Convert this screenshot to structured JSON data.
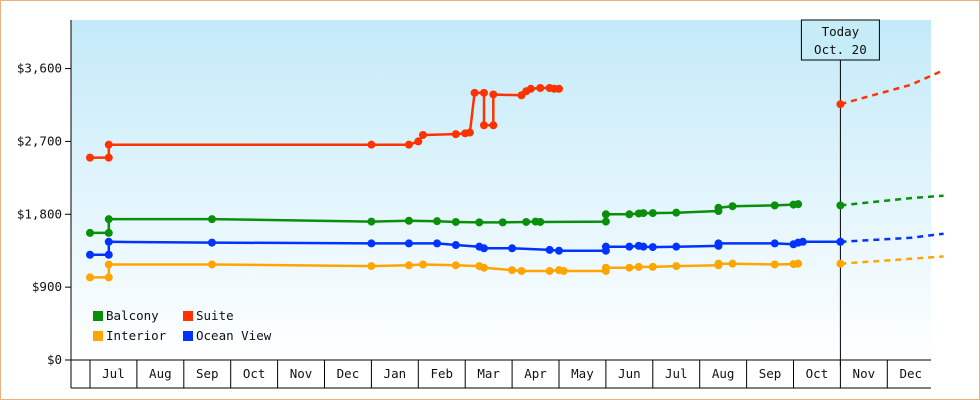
{
  "chart_data": {
    "type": "line",
    "y_ticks": [
      "$0",
      "$900",
      "$1,800",
      "$2,700",
      "$3,600"
    ],
    "y_tick_values": [
      0,
      900,
      1800,
      2700,
      3600
    ],
    "ylim": [
      0,
      4200
    ],
    "months": [
      "Jul",
      "Aug",
      "Sep",
      "Oct",
      "Nov",
      "Dec",
      "Jan",
      "Feb",
      "Mar",
      "Apr",
      "May",
      "Jun",
      "Jul",
      "Aug",
      "Sep",
      "Oct",
      "Nov",
      "Dec"
    ],
    "today": {
      "line1": "Today",
      "line2": "Oct. 20"
    },
    "legend_position": "bottom-left",
    "series": [
      {
        "name": "Balcony",
        "color": "#0a8f0a",
        "points": [
          [
            0.0,
            1570
          ],
          [
            0.4,
            1570
          ],
          [
            0.4,
            1740
          ],
          [
            2.6,
            1740
          ],
          [
            6.0,
            1710
          ],
          [
            6.8,
            1720
          ],
          [
            7.4,
            1715
          ],
          [
            7.8,
            1705
          ],
          [
            8.3,
            1700
          ],
          [
            8.8,
            1700
          ],
          [
            9.3,
            1705
          ],
          [
            9.5,
            1710
          ],
          [
            9.6,
            1705
          ],
          [
            11.0,
            1710
          ],
          [
            11.0,
            1800
          ],
          [
            11.5,
            1800
          ],
          [
            11.7,
            1810
          ],
          [
            11.8,
            1815
          ],
          [
            12.0,
            1815
          ],
          [
            12.5,
            1820
          ],
          [
            13.4,
            1840
          ],
          [
            13.4,
            1880
          ],
          [
            13.7,
            1900
          ],
          [
            14.6,
            1910
          ],
          [
            15.0,
            1920
          ],
          [
            15.1,
            1925
          ]
        ],
        "forecast": [
          [
            16.0,
            1910
          ],
          [
            17.5,
            2000
          ],
          [
            18.2,
            2030
          ]
        ]
      },
      {
        "name": "Suite",
        "color": "#ff3300",
        "points": [
          [
            0.0,
            2500
          ],
          [
            0.4,
            2500
          ],
          [
            0.4,
            2660
          ],
          [
            6.0,
            2660
          ],
          [
            6.8,
            2660
          ],
          [
            7.0,
            2700
          ],
          [
            7.1,
            2780
          ],
          [
            7.8,
            2790
          ],
          [
            8.0,
            2800
          ],
          [
            8.1,
            2810
          ],
          [
            8.2,
            3300
          ],
          [
            8.4,
            3300
          ],
          [
            8.4,
            2900
          ],
          [
            8.6,
            2900
          ],
          [
            8.6,
            3280
          ],
          [
            9.2,
            3270
          ],
          [
            9.3,
            3320
          ],
          [
            9.4,
            3350
          ],
          [
            9.6,
            3360
          ],
          [
            9.8,
            3360
          ],
          [
            9.9,
            3350
          ],
          [
            10.0,
            3350
          ]
        ],
        "forecast": [
          [
            16.0,
            3160
          ],
          [
            17.5,
            3400
          ],
          [
            18.2,
            3580
          ]
        ]
      },
      {
        "name": "Interior",
        "color": "#ffa500",
        "points": [
          [
            0.0,
            1020
          ],
          [
            0.4,
            1020
          ],
          [
            0.4,
            1180
          ],
          [
            2.6,
            1180
          ],
          [
            6.0,
            1160
          ],
          [
            6.8,
            1170
          ],
          [
            7.1,
            1180
          ],
          [
            7.8,
            1170
          ],
          [
            8.3,
            1160
          ],
          [
            8.4,
            1140
          ],
          [
            9.0,
            1110
          ],
          [
            9.2,
            1100
          ],
          [
            9.8,
            1100
          ],
          [
            10.0,
            1110
          ],
          [
            10.1,
            1100
          ],
          [
            11.0,
            1100
          ],
          [
            11.0,
            1140
          ],
          [
            11.5,
            1140
          ],
          [
            11.7,
            1150
          ],
          [
            12.0,
            1150
          ],
          [
            12.5,
            1160
          ],
          [
            13.4,
            1170
          ],
          [
            13.4,
            1190
          ],
          [
            13.7,
            1190
          ],
          [
            14.6,
            1180
          ],
          [
            15.0,
            1185
          ],
          [
            15.1,
            1190
          ]
        ],
        "forecast": [
          [
            16.0,
            1190
          ],
          [
            17.5,
            1250
          ],
          [
            18.2,
            1280
          ]
        ]
      },
      {
        "name": "Ocean View",
        "color": "#0033ff",
        "points": [
          [
            0.0,
            1300
          ],
          [
            0.4,
            1300
          ],
          [
            0.4,
            1460
          ],
          [
            2.6,
            1450
          ],
          [
            6.0,
            1440
          ],
          [
            6.8,
            1440
          ],
          [
            7.4,
            1440
          ],
          [
            7.8,
            1420
          ],
          [
            8.3,
            1400
          ],
          [
            8.4,
            1380
          ],
          [
            9.0,
            1380
          ],
          [
            9.8,
            1360
          ],
          [
            10.0,
            1350
          ],
          [
            11.0,
            1350
          ],
          [
            11.0,
            1400
          ],
          [
            11.5,
            1400
          ],
          [
            11.7,
            1410
          ],
          [
            11.8,
            1400
          ],
          [
            12.0,
            1395
          ],
          [
            12.5,
            1400
          ],
          [
            13.4,
            1410
          ],
          [
            13.4,
            1440
          ],
          [
            14.6,
            1440
          ],
          [
            15.0,
            1430
          ],
          [
            15.1,
            1450
          ],
          [
            15.2,
            1460
          ],
          [
            16.0,
            1460
          ]
        ],
        "forecast": [
          [
            16.0,
            1460
          ],
          [
            17.5,
            1510
          ],
          [
            18.2,
            1560
          ]
        ]
      }
    ]
  }
}
